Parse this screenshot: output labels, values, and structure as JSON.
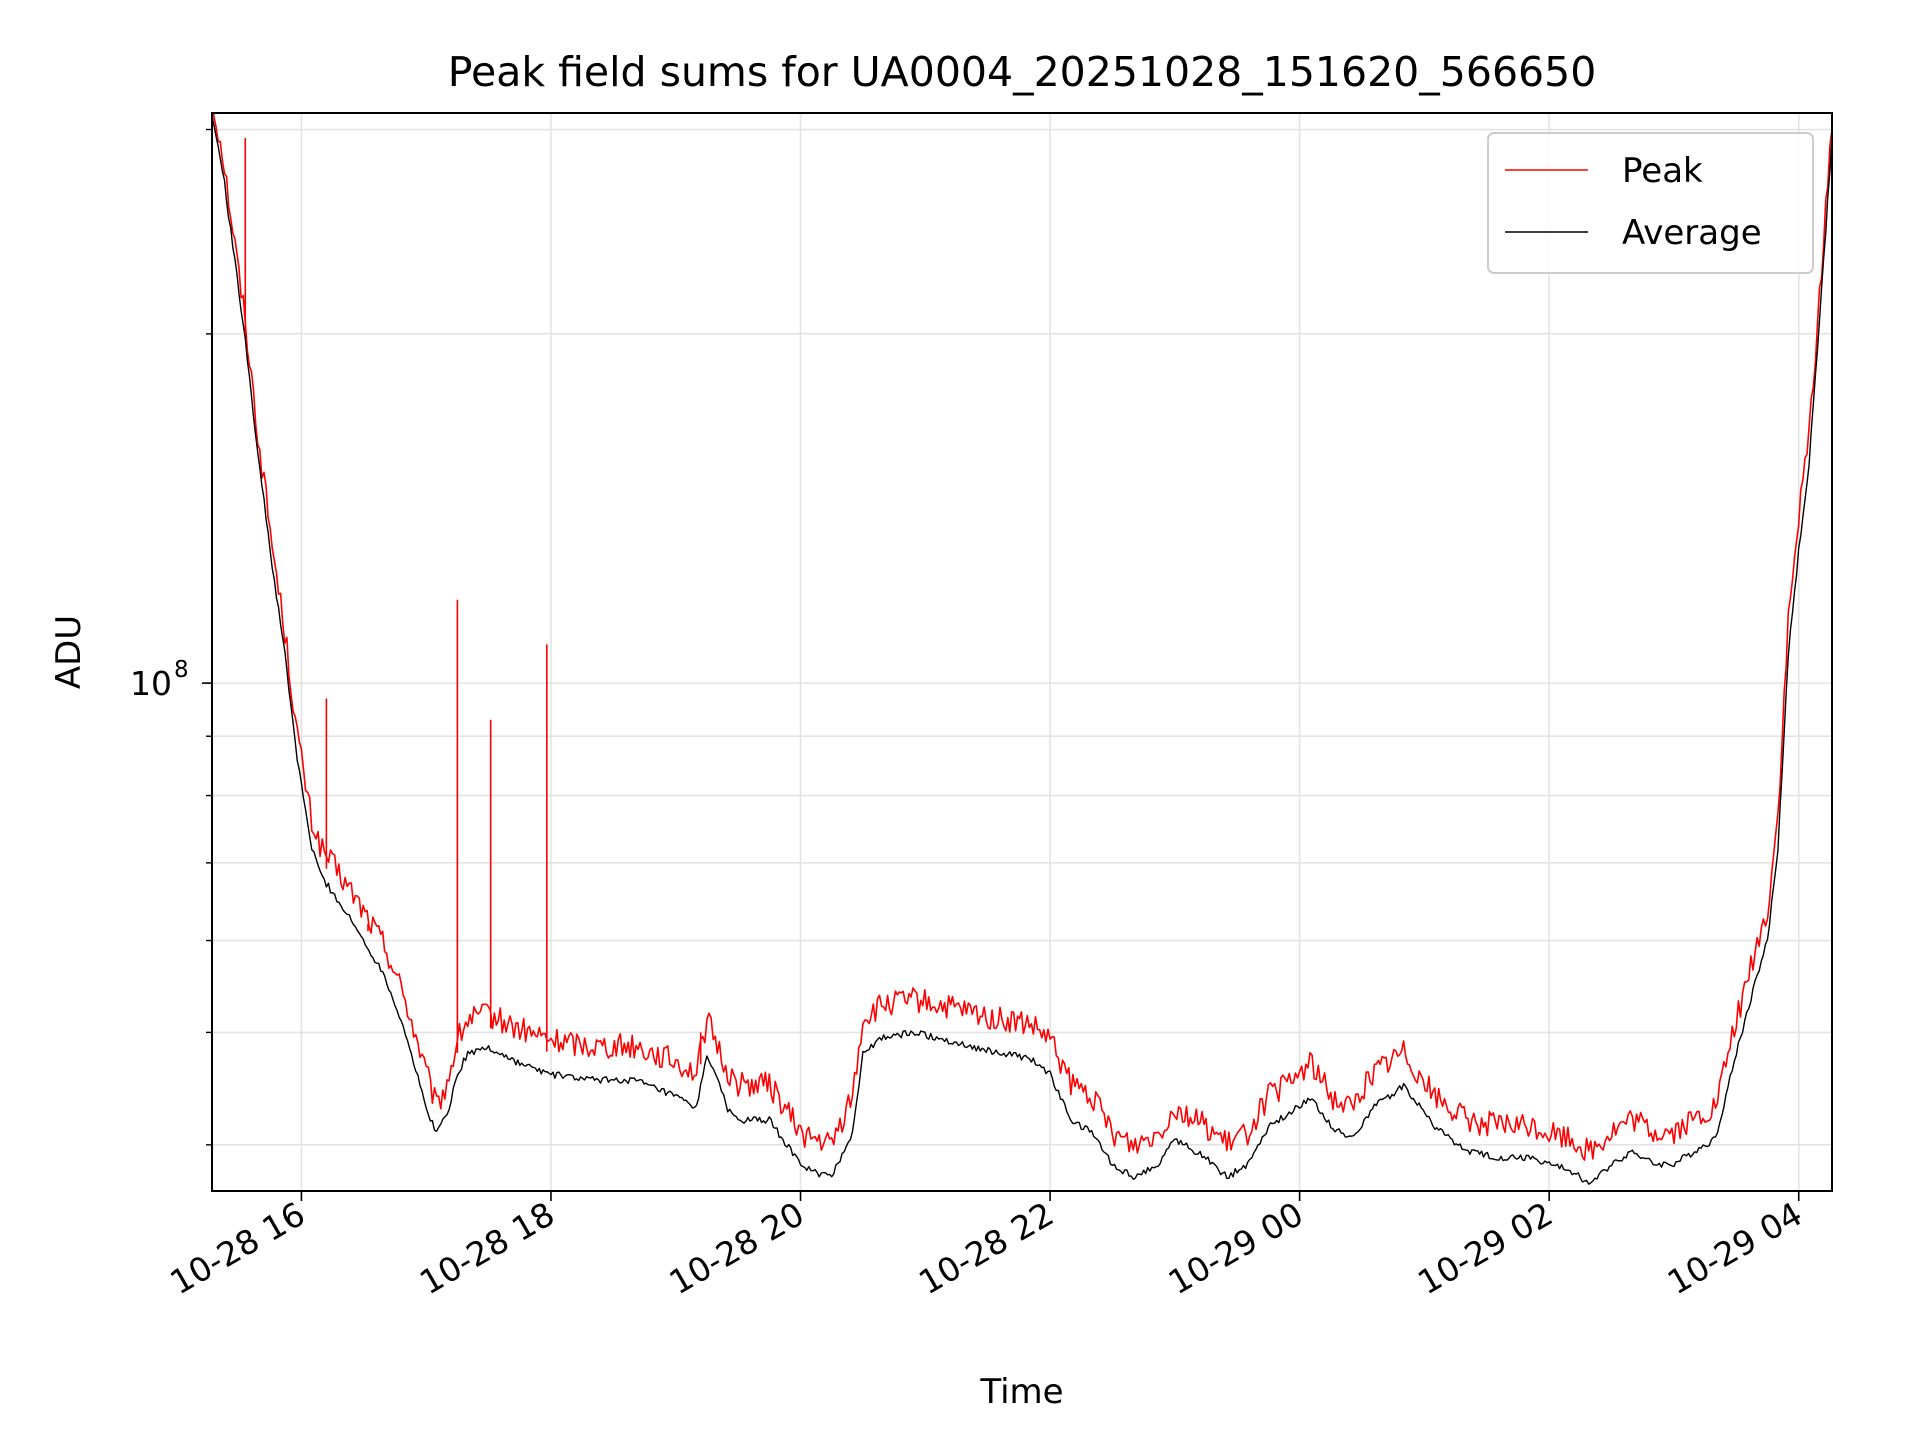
{
  "chart_data": {
    "type": "line",
    "title": "Peak field sums for UA0004_20251028_151620_566650",
    "xlabel": "Time",
    "ylabel": "ADU",
    "y_scale": "log",
    "ylim": [
      36500000,
      310000000
    ],
    "xlim": [
      "2025-10-28 15:17",
      "2025-10-29 04:16"
    ],
    "grid": true,
    "legend_position": "top-right",
    "x_ticks": [
      {
        "value": "2025-10-28 16:00",
        "label": "10-28 16"
      },
      {
        "value": "2025-10-28 18:00",
        "label": "10-28 18"
      },
      {
        "value": "2025-10-28 20:00",
        "label": "10-28 20"
      },
      {
        "value": "2025-10-28 22:00",
        "label": "10-28 22"
      },
      {
        "value": "2025-10-29 00:00",
        "label": "10-29 00"
      },
      {
        "value": "2025-10-29 02:00",
        "label": "10-29 02"
      },
      {
        "value": "2025-10-29 04:00",
        "label": "10-29 04"
      }
    ],
    "y_major_ticks": [
      {
        "value": 100000000,
        "label_base": "10",
        "label_exp": "8"
      }
    ],
    "y_minor_ticks": [
      40000000,
      50000000,
      60000000,
      70000000,
      80000000,
      90000000,
      200000000,
      300000000
    ],
    "series": [
      {
        "name": "Peak",
        "color": "#ff0000",
        "x": [
          "2025-10-28 15:17",
          "2025-10-28 15:22",
          "2025-10-28 15:27",
          "2025-10-28 15:33",
          "2025-10-28 15:39",
          "2025-10-28 15:46",
          "2025-10-28 15:52",
          "2025-10-28 15:58",
          "2025-10-28 16:05",
          "2025-10-28 16:10",
          "2025-10-28 16:15",
          "2025-10-28 16:25",
          "2025-10-28 16:40",
          "2025-10-28 16:50",
          "2025-10-28 17:00",
          "2025-10-28 17:05",
          "2025-10-28 17:10",
          "2025-10-28 17:15",
          "2025-10-28 17:20",
          "2025-10-28 17:30",
          "2025-10-28 17:45",
          "2025-10-28 18:00",
          "2025-10-28 18:20",
          "2025-10-28 18:40",
          "2025-10-28 19:00",
          "2025-10-28 19:10",
          "2025-10-28 19:15",
          "2025-10-28 19:25",
          "2025-10-28 19:30",
          "2025-10-28 19:45",
          "2025-10-28 20:00",
          "2025-10-28 20:05",
          "2025-10-28 20:15",
          "2025-10-28 20:25",
          "2025-10-28 20:30",
          "2025-10-28 20:40",
          "2025-10-28 20:55",
          "2025-10-28 21:15",
          "2025-10-28 21:35",
          "2025-10-28 21:50",
          "2025-10-28 22:00",
          "2025-10-28 22:10",
          "2025-10-28 22:20",
          "2025-10-28 22:30",
          "2025-10-28 22:40",
          "2025-10-28 22:52",
          "2025-10-28 23:00",
          "2025-10-28 23:15",
          "2025-10-28 23:25",
          "2025-10-28 23:35",
          "2025-10-28 23:45",
          "2025-10-28 23:55",
          "2025-10-29 00:05",
          "2025-10-29 00:15",
          "2025-10-29 00:25",
          "2025-10-29 00:35",
          "2025-10-29 00:50",
          "2025-10-29 01:05",
          "2025-10-29 01:20",
          "2025-10-29 01:35",
          "2025-10-29 01:50",
          "2025-10-29 02:00",
          "2025-10-29 02:10",
          "2025-10-29 02:20",
          "2025-10-29 02:30",
          "2025-10-29 02:40",
          "2025-10-29 02:50",
          "2025-10-29 03:00",
          "2025-10-29 03:10",
          "2025-10-29 03:20",
          "2025-10-29 03:30",
          "2025-10-29 03:40",
          "2025-10-29 03:45",
          "2025-10-29 03:50",
          "2025-10-29 03:55",
          "2025-10-29 04:00",
          "2025-10-29 04:05",
          "2025-10-29 04:10",
          "2025-10-29 04:16"
        ],
        "y": [
          310000000,
          280000000,
          240000000,
          200000000,
          160000000,
          128000000,
          108000000,
          88000000,
          74000000,
          70000000,
          68000000,
          64000000,
          58000000,
          52000000,
          45000000,
          42000000,
          44000000,
          48000000,
          50000000,
          50500000,
          49000000,
          48000000,
          47500000,
          47500000,
          46000000,
          45000000,
          50000000,
          45000000,
          44000000,
          44000000,
          40000000,
          39500000,
          39000000,
          43000000,
          50000000,
          51500000,
          52000000,
          51000000,
          50000000,
          49500000,
          48000000,
          44000000,
          43000000,
          40000000,
          39000000,
          40000000,
          42000000,
          40500000,
          39000000,
          40000000,
          43000000,
          44000000,
          46000000,
          43000000,
          42000000,
          45000000,
          47000000,
          43000000,
          41000000,
          40500000,
          40500000,
          40000000,
          39500000,
          38500000,
          40000000,
          41000000,
          40000000,
          40000000,
          41000000,
          42000000,
          50000000,
          58000000,
          62000000,
          75000000,
          110000000,
          135000000,
          160000000,
          210000000,
          300000000
        ]
      },
      {
        "name": "Average",
        "color": "#000000",
        "x": [
          "2025-10-28 15:17",
          "2025-10-28 15:22",
          "2025-10-28 15:27",
          "2025-10-28 15:33",
          "2025-10-28 15:39",
          "2025-10-28 15:46",
          "2025-10-28 15:52",
          "2025-10-28 15:58",
          "2025-10-28 16:05",
          "2025-10-28 16:10",
          "2025-10-28 16:15",
          "2025-10-28 16:25",
          "2025-10-28 16:40",
          "2025-10-28 16:50",
          "2025-10-28 17:00",
          "2025-10-28 17:05",
          "2025-10-28 17:10",
          "2025-10-28 17:15",
          "2025-10-28 17:20",
          "2025-10-28 17:30",
          "2025-10-28 17:45",
          "2025-10-28 18:00",
          "2025-10-28 18:20",
          "2025-10-28 18:40",
          "2025-10-28 19:00",
          "2025-10-28 19:10",
          "2025-10-28 19:15",
          "2025-10-28 19:25",
          "2025-10-28 19:30",
          "2025-10-28 19:45",
          "2025-10-28 20:00",
          "2025-10-28 20:05",
          "2025-10-28 20:15",
          "2025-10-28 20:25",
          "2025-10-28 20:30",
          "2025-10-28 20:40",
          "2025-10-28 20:55",
          "2025-10-28 21:15",
          "2025-10-28 21:35",
          "2025-10-28 21:50",
          "2025-10-28 22:00",
          "2025-10-28 22:10",
          "2025-10-28 22:20",
          "2025-10-28 22:30",
          "2025-10-28 22:40",
          "2025-10-28 22:52",
          "2025-10-28 23:00",
          "2025-10-28 23:15",
          "2025-10-28 23:25",
          "2025-10-28 23:35",
          "2025-10-28 23:45",
          "2025-10-28 23:55",
          "2025-10-29 00:05",
          "2025-10-29 00:15",
          "2025-10-29 00:25",
          "2025-10-29 00:35",
          "2025-10-29 00:50",
          "2025-10-29 01:05",
          "2025-10-29 01:20",
          "2025-10-29 01:35",
          "2025-10-29 01:50",
          "2025-10-29 02:00",
          "2025-10-29 02:10",
          "2025-10-29 02:20",
          "2025-10-29 02:30",
          "2025-10-29 02:40",
          "2025-10-29 02:50",
          "2025-10-29 03:00",
          "2025-10-29 03:10",
          "2025-10-29 03:20",
          "2025-10-29 03:30",
          "2025-10-29 03:40",
          "2025-10-29 03:45",
          "2025-10-29 03:50",
          "2025-10-29 03:55",
          "2025-10-29 04:00",
          "2025-10-29 04:05",
          "2025-10-29 04:10",
          "2025-10-29 04:16"
        ],
        "y": [
          308000000,
          278000000,
          238000000,
          198000000,
          158000000,
          126000000,
          106000000,
          86000000,
          72000000,
          68000000,
          66000000,
          62000000,
          56000000,
          50000000,
          43000000,
          41000000,
          42500000,
          46000000,
          48000000,
          48500000,
          47000000,
          46000000,
          45500000,
          45500000,
          44000000,
          43000000,
          48000000,
          43000000,
          42000000,
          42000000,
          38500000,
          38000000,
          37500000,
          41000000,
          48000000,
          49500000,
          50000000,
          49000000,
          48000000,
          47500000,
          46000000,
          42000000,
          41000000,
          38500000,
          37500000,
          38500000,
          40500000,
          39000000,
          37500000,
          38500000,
          41500000,
          42500000,
          44000000,
          41500000,
          40500000,
          43000000,
          45000000,
          41500000,
          39500000,
          39000000,
          39000000,
          38500000,
          38000000,
          37000000,
          38500000,
          39500000,
          38500000,
          38500000,
          39500000,
          40500000,
          48000000,
          56000000,
          60000000,
          72000000,
          106000000,
          130000000,
          155000000,
          205000000,
          295000000
        ]
      }
    ],
    "spikes": {
      "series": "Peak",
      "points": [
        {
          "x": "2025-10-28 15:33",
          "y": 295000000
        },
        {
          "x": "2025-10-28 16:12",
          "y": 97000000
        },
        {
          "x": "2025-10-28 16:32",
          "y": 62000000
        },
        {
          "x": "2025-10-28 17:15",
          "y": 118000000
        },
        {
          "x": "2025-10-28 17:31",
          "y": 93000000
        },
        {
          "x": "2025-10-28 17:58",
          "y": 108000000
        },
        {
          "x": "2025-10-28 19:12",
          "y": 50000000
        }
      ]
    }
  }
}
